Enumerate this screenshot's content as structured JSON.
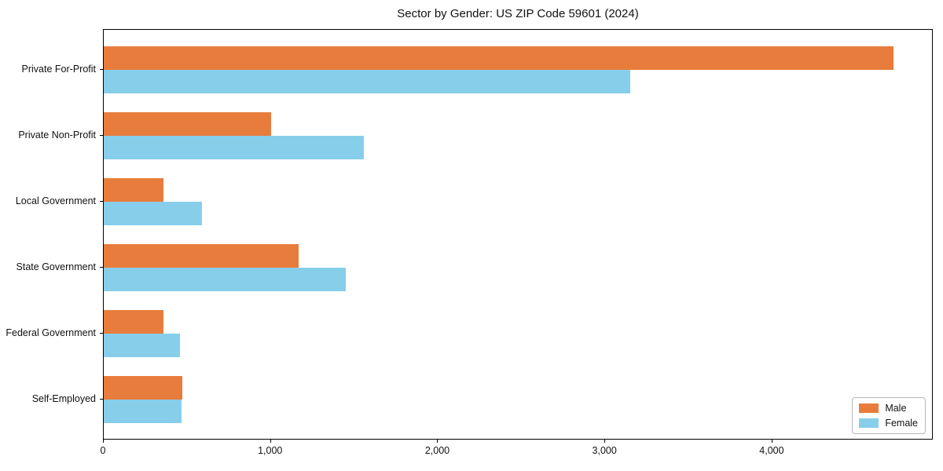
{
  "chart_data": {
    "type": "bar",
    "orientation": "horizontal",
    "title": "Sector by Gender: US ZIP Code 59601 (2024)",
    "categories": [
      "Private For-Profit",
      "Private Non-Profit",
      "Local Government",
      "State Government",
      "Federal Government",
      "Self-Employed"
    ],
    "series": [
      {
        "name": "Male",
        "color": "#e87c3c",
        "values": [
          4724,
          1001,
          357,
          1166,
          357,
          470
        ]
      },
      {
        "name": "Female",
        "color": "#87ceeb",
        "values": [
          3149,
          1556,
          588,
          1448,
          456,
          465
        ]
      }
    ],
    "xlabel": "",
    "ylabel": "",
    "xlim": [
      0,
      4964
    ],
    "xticks": [
      0,
      1000,
      2000,
      3000,
      4000
    ],
    "xticklabels": [
      "0",
      "1,000",
      "2,000",
      "3,000",
      "4,000"
    ],
    "grid": false,
    "legend_position": "lower right",
    "background_color": "#ffffff",
    "axis_color": "#000000"
  }
}
